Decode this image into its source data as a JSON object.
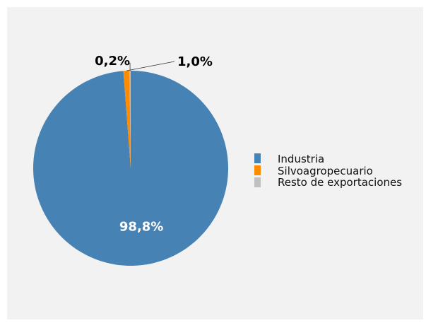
{
  "chart_data": {
    "type": "pie",
    "title": "",
    "categories": [
      "Industria",
      "Silvoagropecuario",
      "Resto de exportaciones"
    ],
    "values": [
      98.8,
      1.0,
      0.2
    ],
    "labels": [
      "98,8%",
      "1,0%",
      "0,2%"
    ],
    "colors": [
      "#4682b4",
      "#ff8c00",
      "#c0c0c0"
    ],
    "start_angle_deg": 90,
    "direction": "clockwise",
    "legend": {
      "position": "right",
      "entries": [
        "Industria",
        "Silvoagropecuario",
        "Resto de exportaciones"
      ]
    }
  }
}
